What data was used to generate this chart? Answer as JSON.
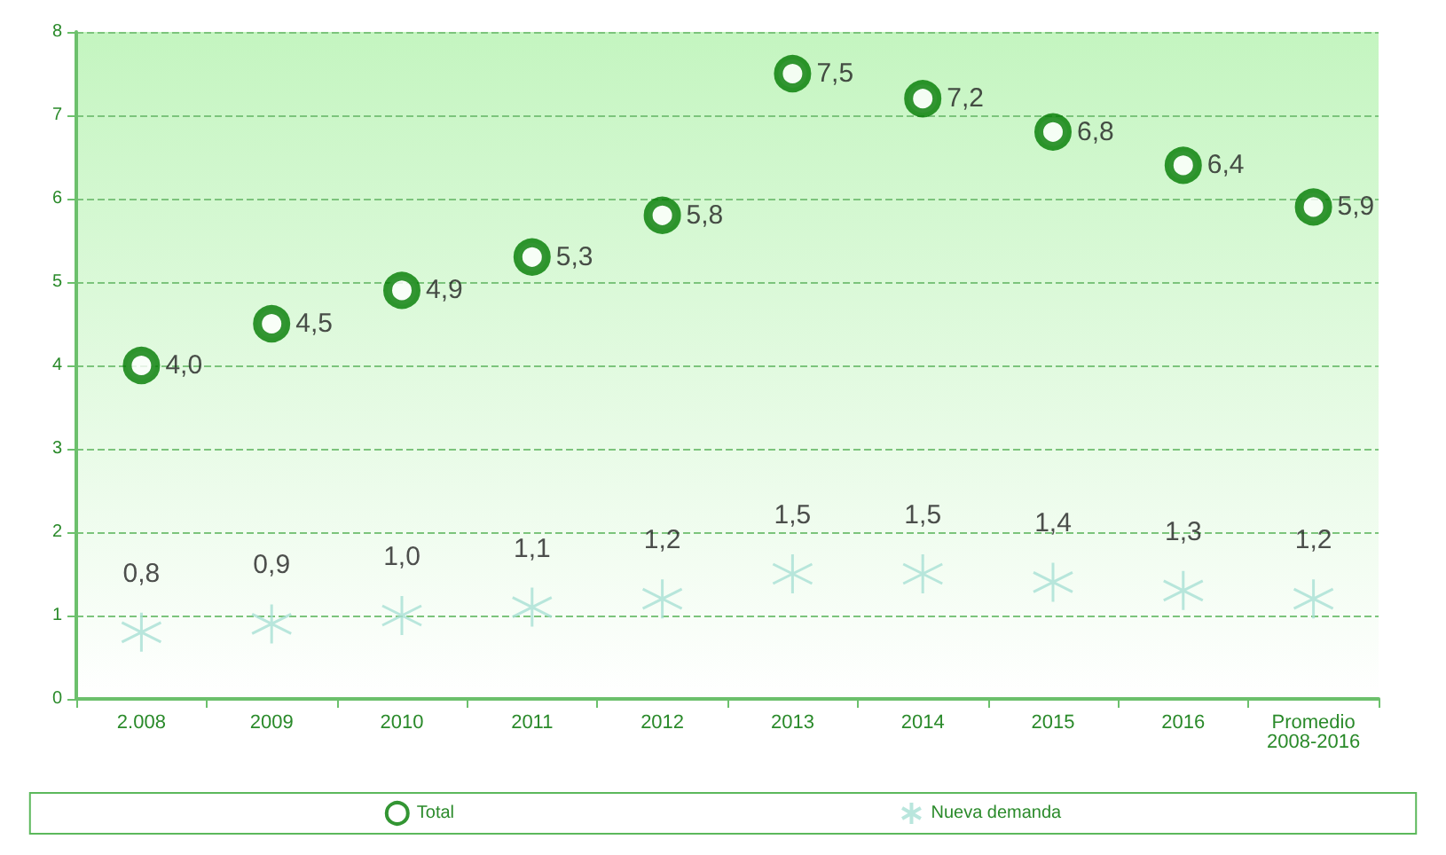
{
  "chart_data": {
    "type": "scatter",
    "categories": [
      "2.008",
      "2009",
      "2010",
      "2011",
      "2012",
      "2013",
      "2014",
      "2015",
      "2016",
      "Promedio\n2008-2016"
    ],
    "series": [
      {
        "name": "Total",
        "color": "#007a00",
        "marker": "circle",
        "values": [
          4.0,
          4.5,
          4.9,
          5.3,
          5.8,
          7.5,
          7.2,
          6.8,
          6.4,
          5.9
        ],
        "value_labels": [
          "4,0",
          "4,5",
          "4,9",
          "5,3",
          "5,8",
          "7,5",
          "7,2",
          "6,8",
          "6,4",
          "5,9"
        ]
      },
      {
        "name": "Nueva demanda",
        "color": "#a8e0d4",
        "marker": "cross",
        "values": [
          0.8,
          0.9,
          1.0,
          1.1,
          1.2,
          1.5,
          1.5,
          1.4,
          1.3,
          1.2
        ],
        "value_labels": [
          "0,8",
          "0,9",
          "1,0",
          "1,1",
          "1,2",
          "1,5",
          "1,5",
          "1,4",
          "1,3",
          "1,2"
        ]
      }
    ],
    "ylim": [
      0,
      8
    ],
    "yticks": [
      0,
      1,
      2,
      3,
      4,
      5,
      6,
      7,
      8
    ],
    "grid": "y",
    "legend": "bottom"
  }
}
